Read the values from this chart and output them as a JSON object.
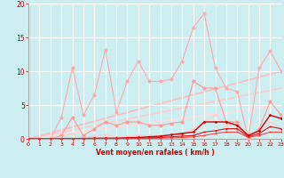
{
  "xlabel": "Vent moyen/en rafales ( km/h )",
  "bg_color": "#cceef0",
  "grid_color": "#ffffff",
  "x_min": 0,
  "x_max": 23,
  "y_min": 0,
  "y_max": 20,
  "y_ticks": [
    0,
    5,
    10,
    15,
    20
  ],
  "x_ticks": [
    0,
    1,
    2,
    3,
    4,
    5,
    6,
    7,
    8,
    9,
    10,
    11,
    12,
    13,
    14,
    15,
    16,
    17,
    18,
    19,
    20,
    21,
    22,
    23
  ],
  "diag_colors": [
    "#ffdddd",
    "#ffcccc",
    "#ffbbbb"
  ],
  "diag_slopes": [
    5.0,
    7.5,
    10.0
  ],
  "line1_color": "#ffaaaa",
  "line1_y": [
    0,
    0,
    0,
    3.2,
    10.5,
    3.5,
    6.5,
    13.2,
    4.0,
    8.5,
    11.5,
    8.5,
    8.5,
    8.8,
    11.5,
    16.5,
    18.5,
    10.5,
    7.5,
    7.0,
    0,
    10.5,
    13.0,
    10.0
  ],
  "line2_color": "#ff9999",
  "line2_y": [
    0,
    0,
    0,
    0.5,
    3.2,
    0.5,
    1.5,
    2.5,
    2.0,
    2.5,
    2.5,
    2.0,
    2.0,
    2.3,
    2.5,
    8.5,
    7.5,
    7.5,
    2.5,
    2.5,
    0,
    1.5,
    5.5,
    3.5
  ],
  "line3_color": "#ffcccc",
  "line3_y": [
    0,
    0,
    0,
    0.2,
    0.8,
    0.1,
    0.5,
    0.6,
    0.3,
    0.4,
    0.5,
    0.5,
    0.5,
    0.5,
    0.8,
    1.5,
    2.5,
    3.5,
    2.0,
    2.0,
    0,
    0.8,
    2.5,
    1.5
  ],
  "line_dark1_color": "#cc0000",
  "line_dark1_y": [
    0,
    0,
    0,
    0.05,
    0.05,
    0.05,
    0.08,
    0.1,
    0.1,
    0.15,
    0.2,
    0.3,
    0.4,
    0.6,
    0.8,
    1.0,
    2.5,
    2.5,
    2.5,
    2.0,
    0.5,
    1.2,
    3.5,
    3.0
  ],
  "line_dark2_color": "#dd1111",
  "line_dark2_y": [
    0,
    0,
    0,
    0.02,
    0.02,
    0.02,
    0.03,
    0.05,
    0.05,
    0.08,
    0.1,
    0.15,
    0.2,
    0.3,
    0.4,
    0.5,
    1.0,
    1.2,
    1.5,
    1.5,
    0.3,
    0.8,
    1.8,
    1.5
  ],
  "line_dark3_color": "#ff3333",
  "line_dark3_y": [
    0,
    0,
    0,
    0.01,
    0.01,
    0.01,
    0.02,
    0.03,
    0.03,
    0.04,
    0.06,
    0.08,
    0.1,
    0.15,
    0.2,
    0.3,
    0.5,
    0.8,
    1.0,
    1.0,
    0.2,
    0.5,
    1.0,
    1.0
  ]
}
